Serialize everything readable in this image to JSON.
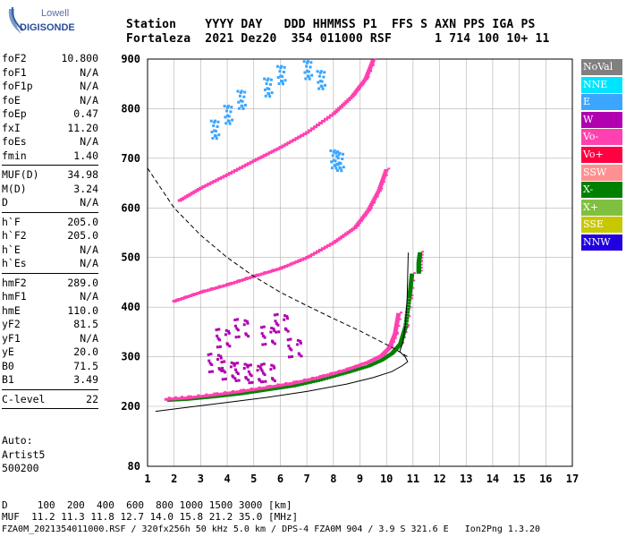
{
  "logo": {
    "line1": "Lowell",
    "line2": "DIGISONDE"
  },
  "header": {
    "line1": "Station    YYYY DAY   DDD HHMMSS P1  FFS S AXN PPS IGA PS",
    "line2": "Fortaleza  2021 Dez20  354 011000 RSF      1 714 100 10+ 11"
  },
  "params": {
    "group1": [
      {
        "label": "foF2",
        "value": "10.800"
      },
      {
        "label": "foF1",
        "value": "N/A"
      },
      {
        "label": "foF1p",
        "value": "N/A"
      },
      {
        "label": "foE",
        "value": "N/A"
      },
      {
        "label": "foEp",
        "value": "0.47"
      },
      {
        "label": "fxI",
        "value": "11.20"
      },
      {
        "label": "foEs",
        "value": "N/A"
      },
      {
        "label": "fmin",
        "value": "1.40"
      }
    ],
    "group2": [
      {
        "label": "MUF(D)",
        "value": "34.98"
      },
      {
        "label": "M(D)",
        "value": "3.24"
      },
      {
        "label": "D",
        "value": "N/A"
      }
    ],
    "group3": [
      {
        "label": "h`F",
        "value": "205.0"
      },
      {
        "label": "h`F2",
        "value": "205.0"
      },
      {
        "label": "h`E",
        "value": "N/A"
      },
      {
        "label": "h`Es",
        "value": "N/A"
      }
    ],
    "group4": [
      {
        "label": "hmF2",
        "value": "289.0"
      },
      {
        "label": "hmF1",
        "value": "N/A"
      },
      {
        "label": "hmE",
        "value": "110.0"
      },
      {
        "label": "yF2",
        "value": "81.5"
      },
      {
        "label": "yF1",
        "value": "N/A"
      },
      {
        "label": "yE",
        "value": "20.0"
      },
      {
        "label": "B0",
        "value": "71.5"
      },
      {
        "label": "B1",
        "value": "3.49"
      }
    ],
    "group5": [
      {
        "label": "C-level",
        "value": "22"
      }
    ]
  },
  "auto": {
    "l1": "Auto:",
    "l2": "Artist5",
    "l3": "500200"
  },
  "legend": [
    {
      "label": "NoVal",
      "color": "#808080"
    },
    {
      "label": "NNE",
      "color": "#00e5ff"
    },
    {
      "label": "E",
      "color": "#3aa6ff"
    },
    {
      "label": "W",
      "color": "#b000b0"
    },
    {
      "label": "Vo-",
      "color": "#ff40b0"
    },
    {
      "label": "Vo+",
      "color": "#ff0040"
    },
    {
      "label": "SSW",
      "color": "#ff9090"
    },
    {
      "label": "X-",
      "color": "#008000"
    },
    {
      "label": "X+",
      "color": "#80c040"
    },
    {
      "label": "SSE",
      "color": "#c8c800"
    },
    {
      "label": "NNW",
      "color": "#2000e0"
    }
  ],
  "bottom": {
    "line1": "D     100  200  400  600  800 1000 1500 3000 [km]",
    "line2": "MUF  11.2 11.3 11.8 12.7 14.0 15.8 21.2 35.0 [MHz]",
    "line3": "FZA0M_2021354011000.RSF / 320fx256h 50 kHz 5.0 km / DPS-4 FZA0M 904 / 3.9 S 321.6 E   Ion2Png 1.3.20"
  },
  "chart_data": {
    "type": "scatter",
    "title": "",
    "xlabel": "",
    "ylabel": "",
    "xlim": [
      1,
      17
    ],
    "ylim": [
      80,
      900
    ],
    "xticks": [
      1,
      2,
      3,
      4,
      5,
      6,
      7,
      8,
      9,
      10,
      11,
      12,
      13,
      14,
      15,
      16,
      17
    ],
    "yticks": [
      80,
      200,
      300,
      400,
      500,
      600,
      700,
      800,
      900
    ],
    "grid": true,
    "traces": [
      {
        "name": "X-",
        "color": "#008000",
        "points": [
          [
            1.8,
            212
          ],
          [
            2.5,
            214
          ],
          [
            3.5,
            219
          ],
          [
            4.5,
            225
          ],
          [
            5.5,
            233
          ],
          [
            6.5,
            241
          ],
          [
            7.5,
            253
          ],
          [
            8.5,
            268
          ],
          [
            9.3,
            281
          ],
          [
            9.8,
            293
          ],
          [
            10.2,
            307
          ],
          [
            10.5,
            325
          ],
          [
            10.7,
            360
          ],
          [
            10.85,
            420
          ],
          [
            10.95,
            470
          ]
        ]
      },
      {
        "name": "Vo-",
        "color": "#ff40b0",
        "points": [
          [
            1.7,
            214
          ],
          [
            2.5,
            217
          ],
          [
            3.5,
            223
          ],
          [
            4.5,
            230
          ],
          [
            5.5,
            238
          ],
          [
            6.5,
            247
          ],
          [
            7.5,
            259
          ],
          [
            8.5,
            274
          ],
          [
            9.3,
            289
          ],
          [
            9.8,
            302
          ],
          [
            10.1,
            318
          ],
          [
            10.3,
            345
          ],
          [
            10.45,
            390
          ]
        ]
      },
      {
        "name": "Vo-",
        "color": "#ff40b0",
        "points": [
          [
            2.0,
            412
          ],
          [
            3.0,
            430
          ],
          [
            4.0,
            445
          ],
          [
            5.0,
            462
          ],
          [
            6.0,
            478
          ],
          [
            7.0,
            500
          ],
          [
            8.0,
            530
          ],
          [
            8.8,
            560
          ],
          [
            9.3,
            595
          ],
          [
            9.7,
            635
          ],
          [
            10.0,
            680
          ]
        ]
      },
      {
        "name": "Vo-",
        "color": "#ff40b0",
        "points": [
          [
            2.2,
            615
          ],
          [
            3.0,
            640
          ],
          [
            4.0,
            667
          ],
          [
            5.0,
            695
          ],
          [
            6.0,
            722
          ],
          [
            7.0,
            752
          ],
          [
            8.0,
            790
          ],
          [
            8.7,
            825
          ],
          [
            9.2,
            860
          ],
          [
            9.5,
            900
          ]
        ]
      },
      {
        "name": "W",
        "color": "#b000b0",
        "points": [
          [
            3.5,
            290
          ],
          [
            4.0,
            275
          ],
          [
            4.5,
            272
          ],
          [
            5.0,
            268
          ],
          [
            5.5,
            270
          ],
          [
            3.8,
            340
          ],
          [
            4.5,
            360
          ],
          [
            5.5,
            345
          ],
          [
            6.0,
            370
          ],
          [
            6.5,
            320
          ]
        ]
      },
      {
        "name": "E",
        "color": "#3aa6ff",
        "points": [
          [
            3.5,
            760
          ],
          [
            4.0,
            790
          ],
          [
            4.5,
            820
          ],
          [
            5.5,
            845
          ],
          [
            6.0,
            870
          ],
          [
            7.0,
            880
          ],
          [
            7.5,
            860
          ],
          [
            8.0,
            700
          ],
          [
            8.2,
            695
          ]
        ]
      },
      {
        "name": "X-",
        "color": "#008000",
        "points": [
          [
            11.2,
            470
          ],
          [
            11.2,
            490
          ],
          [
            11.25,
            510
          ]
        ]
      }
    ],
    "profile": {
      "points": [
        [
          1.3,
          190
        ],
        [
          2.5,
          198
        ],
        [
          4,
          208
        ],
        [
          5.5,
          218
        ],
        [
          7,
          230
        ],
        [
          8.5,
          245
        ],
        [
          9.5,
          258
        ],
        [
          10.2,
          270
        ],
        [
          10.6,
          282
        ],
        [
          10.8,
          290
        ],
        [
          10.7,
          300
        ],
        [
          10.5,
          310
        ],
        [
          10.62,
          330
        ],
        [
          10.72,
          370
        ],
        [
          10.78,
          420
        ],
        [
          10.82,
          510
        ]
      ]
    },
    "muf_curve": {
      "points": [
        [
          1.0,
          680
        ],
        [
          1.5,
          640
        ],
        [
          2.0,
          600
        ],
        [
          3.0,
          545
        ],
        [
          4.0,
          500
        ],
        [
          5.0,
          462
        ],
        [
          6.0,
          430
        ],
        [
          7.0,
          403
        ],
        [
          8.0,
          377
        ],
        [
          9.0,
          352
        ],
        [
          9.8,
          330
        ],
        [
          10.3,
          316
        ],
        [
          10.8,
          300
        ]
      ]
    }
  }
}
